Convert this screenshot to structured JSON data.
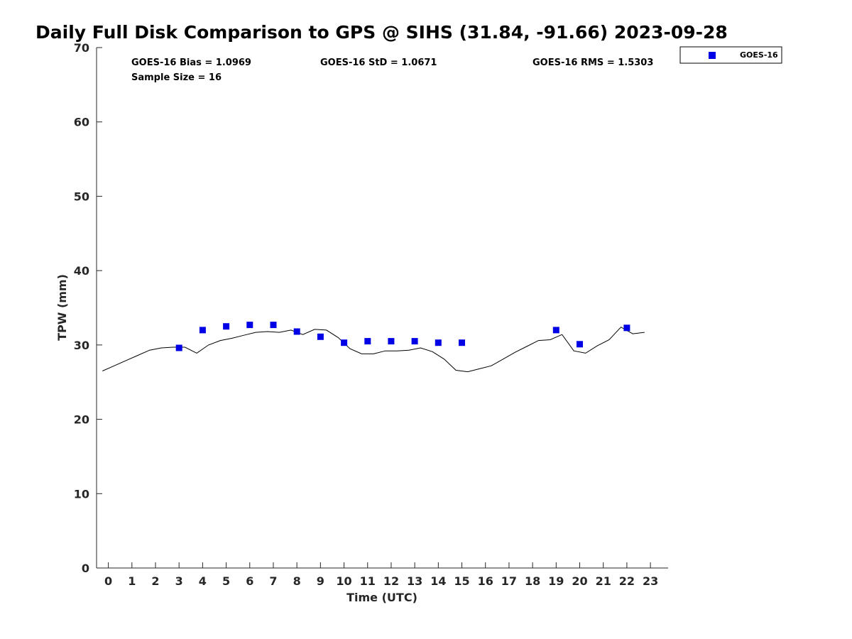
{
  "chart_data": {
    "type": "scatter",
    "title": "Daily Full Disk Comparison to GPS @ SIHS (31.84, -91.66) 2023-09-28",
    "xlabel": "Time (UTC)",
    "ylabel": "TPW (mm)",
    "xlim": [
      -0.5,
      23.75
    ],
    "ylim": [
      0,
      70
    ],
    "x_ticks": [
      "0",
      "1",
      "2",
      "3",
      "4",
      "5",
      "6",
      "7",
      "8",
      "9",
      "10",
      "11",
      "12",
      "13",
      "14",
      "15",
      "16",
      "17",
      "18",
      "19",
      "20",
      "21",
      "22",
      "23"
    ],
    "y_ticks": [
      "0",
      "10",
      "20",
      "30",
      "40",
      "50",
      "60",
      "70"
    ],
    "grid": false,
    "legend_position": "top-right, outside plot",
    "stats": {
      "bias": "GOES-16 Bias = 1.0969",
      "std": "GOES-16 StD = 1.0671",
      "rms": "GOES-16 RMS = 1.5303",
      "sample": "Sample Size = 16"
    },
    "series": [
      {
        "name": "GOES-16",
        "kind": "scatter",
        "marker": "square",
        "color": "#0000e6",
        "x": [
          3,
          4,
          5,
          6,
          7,
          8,
          9,
          10,
          11,
          12,
          13,
          14,
          15,
          19,
          20,
          22
        ],
        "y": [
          29.6,
          32.0,
          32.5,
          32.7,
          32.7,
          31.8,
          31.1,
          30.3,
          30.5,
          30.5,
          30.5,
          30.3,
          30.3,
          32.0,
          30.1,
          32.3
        ]
      },
      {
        "kind": "line",
        "color": "#000000",
        "x": [
          -0.25,
          0.25,
          0.75,
          1.25,
          1.75,
          2.25,
          2.75,
          3.25,
          3.75,
          4.25,
          4.75,
          5.25,
          5.75,
          6.25,
          6.75,
          7.25,
          7.75,
          8.25,
          8.75,
          9.25,
          9.75,
          10.25,
          10.75,
          11.25,
          11.75,
          12.25,
          12.75,
          13.25,
          13.75,
          14.25,
          14.75,
          15.25,
          15.75,
          16.25,
          16.75,
          17.25,
          17.75,
          18.25,
          18.75,
          19.25,
          19.75,
          20.25,
          20.75,
          21.25,
          21.75,
          22.25,
          22.75
        ],
        "y": [
          26.5,
          27.2,
          27.9,
          28.6,
          29.3,
          29.6,
          29.7,
          29.7,
          28.9,
          30.0,
          30.6,
          30.9,
          31.3,
          31.7,
          31.8,
          31.7,
          32.0,
          31.4,
          32.1,
          32.0,
          31.0,
          29.5,
          28.8,
          28.8,
          29.2,
          29.2,
          29.3,
          29.6,
          29.1,
          28.1,
          26.6,
          26.4,
          26.8,
          27.2,
          28.1,
          29.0,
          29.8,
          30.6,
          30.7,
          31.4,
          29.2,
          28.9,
          29.9,
          30.7,
          32.4,
          31.5,
          31.7
        ]
      }
    ]
  }
}
